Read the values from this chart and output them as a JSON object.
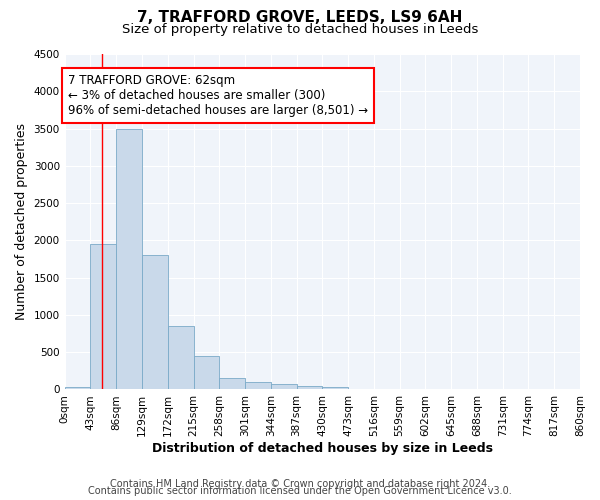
{
  "title1": "7, TRAFFORD GROVE, LEEDS, LS9 6AH",
  "title2": "Size of property relative to detached houses in Leeds",
  "xlabel": "Distribution of detached houses by size in Leeds",
  "ylabel": "Number of detached properties",
  "bar_edges": [
    0,
    43,
    86,
    129,
    172,
    215,
    258,
    301,
    344,
    387,
    430,
    473,
    516,
    559,
    602,
    645,
    688,
    731,
    774,
    817,
    860
  ],
  "bar_heights": [
    30,
    1950,
    3500,
    1800,
    850,
    450,
    155,
    100,
    70,
    50,
    30,
    0,
    0,
    0,
    0,
    0,
    0,
    0,
    0,
    0
  ],
  "bar_color": "#c9d9ea",
  "bar_edge_color": "#7aaac8",
  "property_size": 62,
  "annotation_line1": "7 TRAFFORD GROVE: 62sqm",
  "annotation_line2": "← 3% of detached houses are smaller (300)",
  "annotation_line3": "96% of semi-detached houses are larger (8,501) →",
  "annotation_box_color": "white",
  "annotation_box_edge": "red",
  "vline_color": "red",
  "ylim": [
    0,
    4500
  ],
  "yticks": [
    0,
    500,
    1000,
    1500,
    2000,
    2500,
    3000,
    3500,
    4000,
    4500
  ],
  "xtick_labels": [
    "0sqm",
    "43sqm",
    "86sqm",
    "129sqm",
    "172sqm",
    "215sqm",
    "258sqm",
    "301sqm",
    "344sqm",
    "387sqm",
    "430sqm",
    "473sqm",
    "516sqm",
    "559sqm",
    "602sqm",
    "645sqm",
    "688sqm",
    "731sqm",
    "774sqm",
    "817sqm",
    "860sqm"
  ],
  "footer1": "Contains HM Land Registry data © Crown copyright and database right 2024.",
  "footer2": "Contains public sector information licensed under the Open Government Licence v3.0.",
  "bg_color": "#ffffff",
  "plot_bg_color": "#f0f4fa",
  "grid_color": "#ffffff",
  "title1_fontsize": 11,
  "title2_fontsize": 9.5,
  "axis_label_fontsize": 9,
  "tick_fontsize": 7.5,
  "annotation_fontsize": 8.5,
  "footer_fontsize": 7
}
